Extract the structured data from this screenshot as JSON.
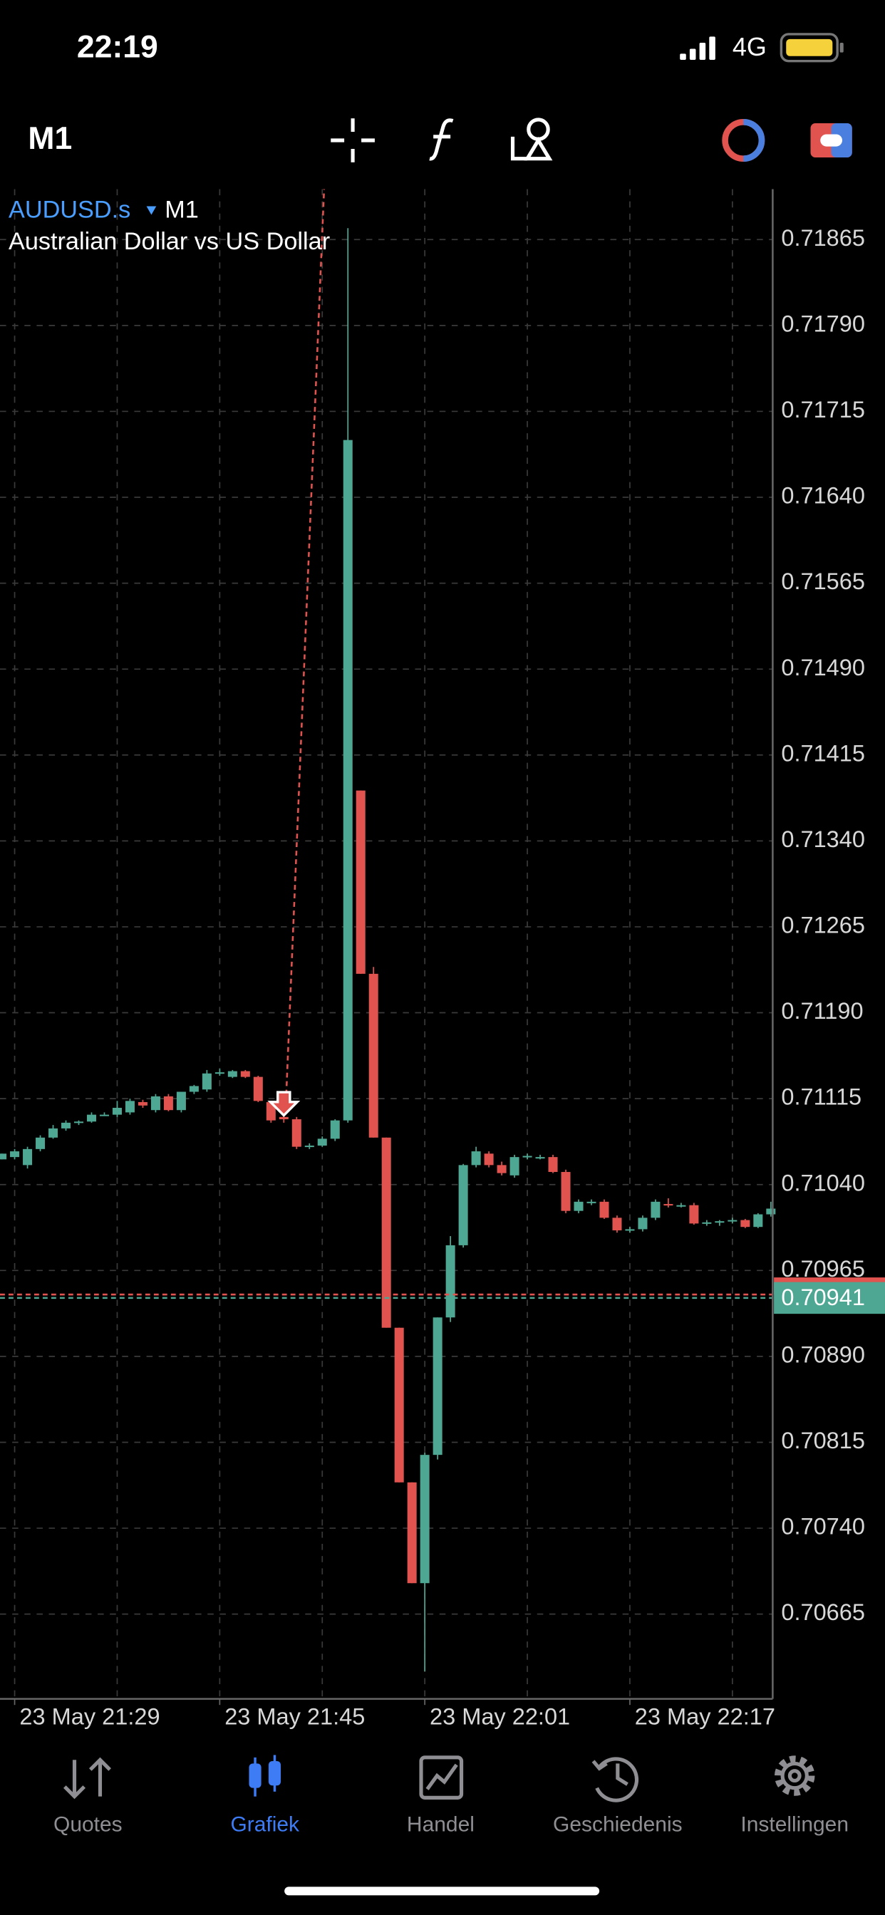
{
  "status_bar": {
    "time": "22:19",
    "network": "4G"
  },
  "toolbar": {
    "timeframe": "M1"
  },
  "tabs": [
    "Quotes",
    "Grafiek",
    "Handel",
    "Geschiedenis",
    "Instellingen"
  ],
  "chart_data": {
    "type": "candlestick",
    "symbol": "AUDUSD.s",
    "timeframe": "M1",
    "title": "Australian Dollar vs US Dollar",
    "up_color": "#4ea792",
    "down_color": "#e0534f",
    "grid": true,
    "categories": [
      null,
      "23 May 21:29",
      null,
      null,
      null,
      null,
      null,
      null,
      null,
      null,
      null,
      null,
      null,
      null,
      null,
      null,
      null,
      "23 May 21:45",
      null,
      null,
      null,
      null,
      null,
      null,
      null,
      null,
      null,
      null,
      null,
      null,
      null,
      null,
      null,
      "23 May 22:01",
      null,
      null,
      null,
      null,
      null,
      null,
      null,
      null,
      null,
      null,
      null,
      null,
      null,
      null,
      null,
      "23 May 22:17",
      null,
      null,
      null,
      null,
      null,
      null,
      null,
      null,
      null,
      null,
      null
    ],
    "open": [
      0.71062,
      0.71064,
      0.71057,
      0.71071,
      0.71081,
      0.71089,
      0.71094,
      0.71095,
      0.71101,
      0.71101,
      0.71103,
      0.71112,
      0.71105,
      0.71117,
      0.71105,
      0.71121,
      0.71123,
      0.71137,
      0.71134,
      0.71139,
      0.71134,
      0.71112,
      0.71099,
      0.71097,
      0.71073,
      0.71074,
      0.7108,
      0.71096,
      0.71384,
      0.71224,
      0.71081,
      0.70915,
      0.7078,
      0.70692,
      0.70804,
      0.70924,
      0.70987,
      0.71057,
      0.71067,
      0.71057,
      0.71048,
      0.71064,
      0.71064,
      0.71064,
      0.71051,
      0.71017,
      0.71025,
      0.71025,
      0.71011,
      0.71,
      0.71001,
      0.71011,
      0.71023,
      0.71022,
      0.71022,
      0.71006,
      0.71007,
      0.71008,
      0.71009,
      0.71003,
      0.71014
    ],
    "high": [
      0.71067,
      0.71071,
      0.71073,
      0.71083,
      0.71092,
      0.71096,
      0.71096,
      0.71103,
      0.71103,
      0.71113,
      0.71115,
      0.71114,
      0.71119,
      0.71119,
      0.71121,
      0.71127,
      0.7114,
      0.71141,
      0.7114,
      0.7114,
      0.71135,
      0.71113,
      0.71104,
      0.71099,
      0.71076,
      0.71082,
      0.71097,
      0.71875,
      0.71384,
      0.7123,
      0.71081,
      0.70915,
      0.7078,
      0.70806,
      0.70924,
      0.70995,
      0.71058,
      0.71073,
      0.71069,
      0.7106,
      0.71066,
      0.71067,
      0.71066,
      0.71066,
      0.71053,
      0.71027,
      0.71027,
      0.71027,
      0.71013,
      0.71003,
      0.71013,
      0.71027,
      0.71028,
      0.71024,
      0.71024,
      0.71009,
      0.71009,
      0.71011,
      0.7101,
      0.71015,
      0.71025
    ],
    "low": [
      0.71062,
      0.71062,
      0.71054,
      0.71069,
      0.7108,
      0.71087,
      0.71092,
      0.71094,
      0.711,
      0.71099,
      0.71101,
      0.71107,
      0.71103,
      0.71104,
      0.71103,
      0.71119,
      0.71121,
      0.71135,
      0.71133,
      0.71133,
      0.71112,
      0.71094,
      0.71094,
      0.71071,
      0.71071,
      0.71073,
      0.71078,
      0.71094,
      0.71224,
      0.71081,
      0.70915,
      0.7078,
      0.70692,
      0.70615,
      0.708,
      0.7092,
      0.70985,
      0.71055,
      0.71055,
      0.71048,
      0.71046,
      0.71062,
      0.71062,
      0.7105,
      0.71015,
      0.71015,
      0.71022,
      0.7101,
      0.70998,
      0.70998,
      0.70999,
      0.71009,
      0.7102,
      0.7102,
      0.71005,
      0.71004,
      0.71004,
      0.71006,
      0.71002,
      0.71002,
      0.71012
    ],
    "close": [
      0.71067,
      0.71069,
      0.71071,
      0.71081,
      0.71089,
      0.71094,
      0.71095,
      0.71101,
      0.71101,
      0.71107,
      0.71113,
      0.71109,
      0.71117,
      0.71105,
      0.71121,
      0.71126,
      0.71137,
      0.71138,
      0.71139,
      0.71134,
      0.71113,
      0.71096,
      0.71097,
      0.71073,
      0.71074,
      0.7108,
      0.71096,
      0.7169,
      0.71224,
      0.71081,
      0.70915,
      0.7078,
      0.70692,
      0.70804,
      0.70924,
      0.70987,
      0.71057,
      0.71069,
      0.71057,
      0.7105,
      0.71064,
      0.71065,
      0.71064,
      0.71051,
      0.71017,
      0.71025,
      0.71025,
      0.71011,
      0.71,
      0.71001,
      0.71011,
      0.71025,
      0.71022,
      0.71022,
      0.71006,
      0.71007,
      0.71008,
      0.71009,
      0.71003,
      0.71014,
      0.71019
    ],
    "ylim": [
      0.70591,
      0.71909
    ],
    "yticks": [
      0.71865,
      {
        "value": 0.7179,
        "label": "0.71790"
      },
      0.71715,
      {
        "value": 0.7164,
        "label": "0.71640"
      },
      0.71565,
      {
        "value": 0.7149,
        "label": "0.71490"
      },
      0.71415,
      {
        "value": 0.7134,
        "label": "0.71340"
      },
      0.71265,
      {
        "value": 0.7119,
        "label": "0.71190"
      },
      0.71115,
      {
        "value": 0.7104,
        "label": "0.71040"
      },
      0.70965,
      {
        "value": 0.7089,
        "label": "0.70890"
      },
      0.70815,
      {
        "value": 0.7074,
        "label": "0.70740"
      },
      0.70665
    ],
    "bid": 0.70941,
    "ask": 0.70944,
    "sell_marker": {
      "time_index": 22,
      "price": 0.7111
    }
  }
}
